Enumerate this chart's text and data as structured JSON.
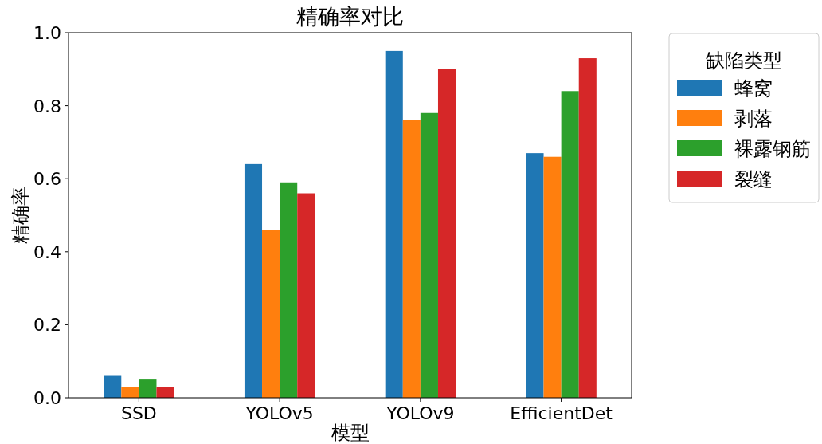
{
  "chart_data": {
    "type": "bar",
    "title": "精确率对比",
    "xlabel": "模型",
    "ylabel": "精确率",
    "legend_title": "缺陷类型",
    "legend": "right",
    "categories": [
      "SSD",
      "YOLOv5",
      "YOLOv9",
      "EfficientDet"
    ],
    "series": [
      {
        "name": "蜂窝",
        "color": "#1f77b4",
        "values": [
          0.06,
          0.64,
          0.95,
          0.67
        ]
      },
      {
        "name": "剥落",
        "color": "#ff7f0e",
        "values": [
          0.03,
          0.46,
          0.76,
          0.66
        ]
      },
      {
        "name": "裸露钢筋",
        "color": "#2ca02c",
        "values": [
          0.05,
          0.59,
          0.78,
          0.84
        ]
      },
      {
        "name": "裂缝",
        "color": "#d62728",
        "values": [
          0.03,
          0.56,
          0.9,
          0.93
        ]
      }
    ],
    "ylim": [
      0,
      1
    ],
    "yticks": [
      {
        "value": 0,
        "label": "0.0"
      },
      0.2,
      0.4,
      0.6,
      0.8,
      {
        "value": 1,
        "label": "1.0"
      }
    ]
  }
}
